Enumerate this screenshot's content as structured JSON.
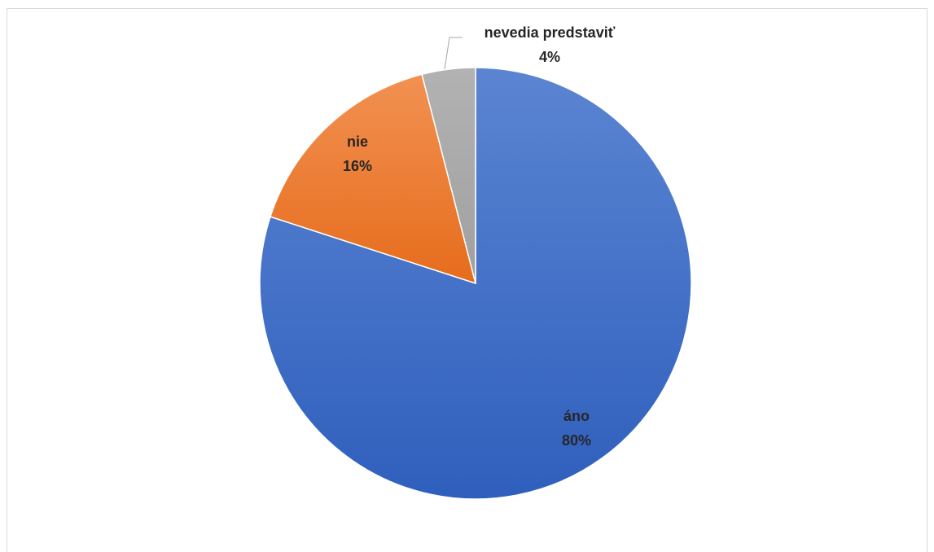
{
  "chart_data": {
    "type": "pie",
    "title": "",
    "slices": [
      {
        "label": "áno",
        "value": 80,
        "value_label": "80%",
        "color": "#4472c4"
      },
      {
        "label": "nie",
        "value": 16,
        "value_label": "16%",
        "color": "#ed7d31"
      },
      {
        "label": "nevedia predstaviť",
        "value": 4,
        "value_label": "4%",
        "color": "#a5a5a5"
      }
    ],
    "legend": "none",
    "data_labels": "category-and-percent"
  }
}
